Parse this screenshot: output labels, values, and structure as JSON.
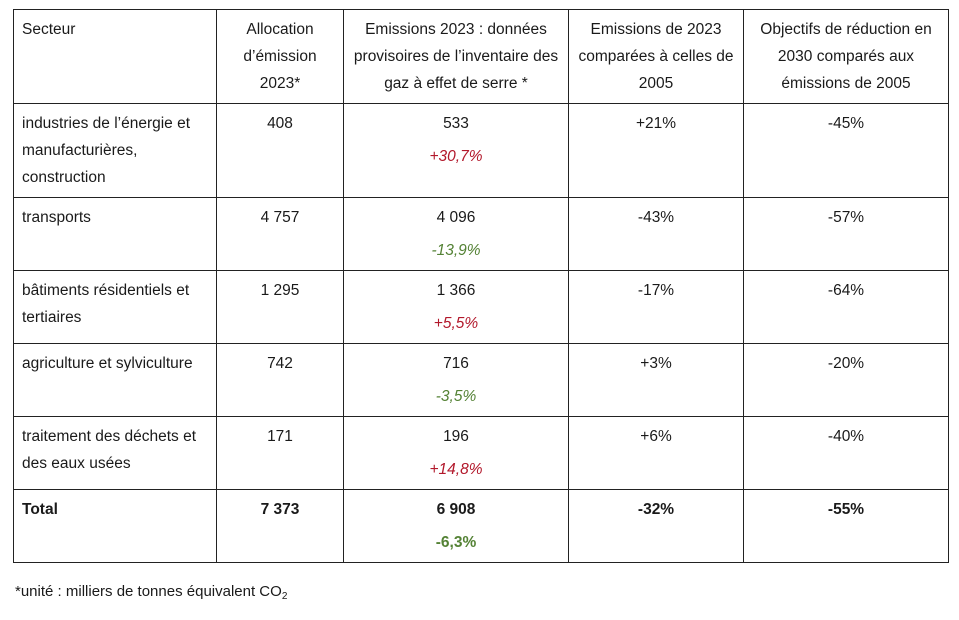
{
  "table": {
    "headers": [
      "Secteur",
      "Allocation d’émission 2023*",
      "Emissions 2023 : données provisoires de l’inventaire des gaz à effet de serre *",
      "Emissions de 2023 comparées à celles de 2005",
      "Objectifs de réduction en 2030 comparés aux émissions de 2005"
    ],
    "rows": [
      {
        "sector": "industries de l’énergie et manufacturières, construction",
        "allocation": "408",
        "emissions": "533",
        "change": "+30,7%",
        "vs2005": "+21%",
        "target2030": "-45%"
      },
      {
        "sector": "transports",
        "allocation": "4 757",
        "emissions": "4 096",
        "change": "-13,9%",
        "vs2005": "-43%",
        "target2030": "-57%"
      },
      {
        "sector": "bâtiments résidentiels et tertiaires",
        "allocation": "1 295",
        "emissions": "1 366",
        "change": "+5,5%",
        "vs2005": "-17%",
        "target2030": "-64%"
      },
      {
        "sector": "agriculture et sylviculture",
        "allocation": "742",
        "emissions": "716",
        "change": "-3,5%",
        "vs2005": "+3%",
        "target2030": "-20%"
      },
      {
        "sector": "traitement des déchets et des eaux usées",
        "allocation": "171",
        "emissions": "196",
        "change": "+14,8%",
        "vs2005": "+6%",
        "target2030": "-40%"
      }
    ],
    "total": {
      "sector": "Total",
      "allocation": "7 373",
      "emissions": "6 908",
      "change": "-6,3%",
      "vs2005": "-32%",
      "target2030": "-55%"
    }
  },
  "colors": {
    "increase": "#b2182b",
    "decrease": "#548235"
  },
  "footnote": {
    "text": "*unité : milliers de tonnes équivalent CO",
    "subscript": "2"
  }
}
